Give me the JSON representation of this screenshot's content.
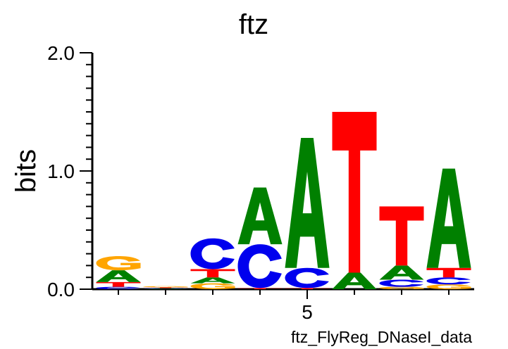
{
  "chart_data": {
    "type": "sequence-logo",
    "title": "ftz",
    "ylabel": "bits",
    "xlabel": "ftz_FlyReg_DNaseI_data",
    "ylim": [
      0,
      2.0
    ],
    "yticks": [
      {
        "value": 0.0,
        "label": "0.0"
      },
      {
        "value": 1.0,
        "label": "1.0"
      },
      {
        "value": 2.0,
        "label": "2.0"
      }
    ],
    "xticks": [
      {
        "position": 5,
        "label": "5"
      }
    ],
    "positions": 8,
    "colors": {
      "A": "#008000",
      "C": "#0000ee",
      "G": "#ffa500",
      "T": "#ff0000"
    },
    "columns": [
      {
        "position": 1,
        "letters": [
          {
            "base": "C",
            "height": 0.02
          },
          {
            "base": "T",
            "height": 0.04
          },
          {
            "base": "A",
            "height": 0.1
          },
          {
            "base": "G",
            "height": 0.12
          }
        ]
      },
      {
        "position": 2,
        "letters": [
          {
            "base": "A",
            "height": 0.005
          },
          {
            "base": "C",
            "height": 0.005
          },
          {
            "base": "T",
            "height": 0.005
          },
          {
            "base": "G",
            "height": 0.01
          }
        ]
      },
      {
        "position": 3,
        "letters": [
          {
            "base": "G",
            "height": 0.05
          },
          {
            "base": "A",
            "height": 0.05
          },
          {
            "base": "T",
            "height": 0.07
          },
          {
            "base": "C",
            "height": 0.26
          }
        ]
      },
      {
        "position": 4,
        "letters": [
          {
            "base": "T",
            "height": 0.01
          },
          {
            "base": "C",
            "height": 0.37
          },
          {
            "base": "A",
            "height": 0.48
          }
        ]
      },
      {
        "position": 5,
        "letters": [
          {
            "base": "T",
            "height": 0.01
          },
          {
            "base": "C",
            "height": 0.17
          },
          {
            "base": "A",
            "height": 1.1
          }
        ]
      },
      {
        "position": 6,
        "letters": [
          {
            "base": "A",
            "height": 0.14
          },
          {
            "base": "T",
            "height": 1.36
          }
        ]
      },
      {
        "position": 7,
        "letters": [
          {
            "base": "G",
            "height": 0.02
          },
          {
            "base": "C",
            "height": 0.06
          },
          {
            "base": "A",
            "height": 0.12
          },
          {
            "base": "T",
            "height": 0.5
          }
        ]
      },
      {
        "position": 8,
        "letters": [
          {
            "base": "G",
            "height": 0.04
          },
          {
            "base": "C",
            "height": 0.06
          },
          {
            "base": "T",
            "height": 0.08
          },
          {
            "base": "A",
            "height": 0.84
          }
        ]
      }
    ]
  }
}
